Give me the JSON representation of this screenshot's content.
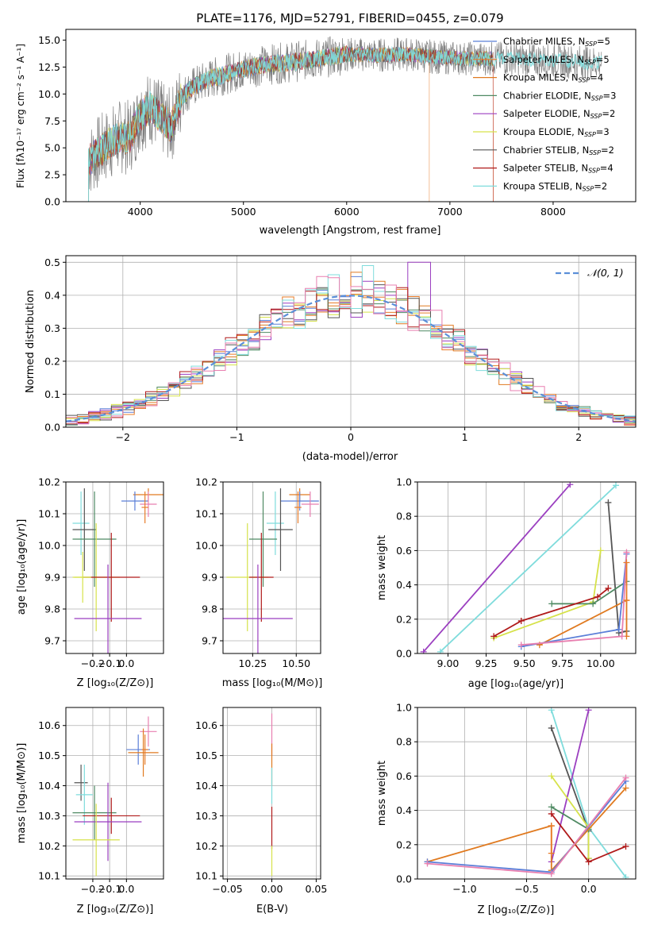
{
  "chart_data": [
    {
      "id": "spectrum",
      "type": "line",
      "title": "PLATE=1176, MJD=52791, FIBERID=0455, z=0.079",
      "xlabel": "wavelength [Angstrom, rest frame]",
      "ylabel": "Flux [fλ10⁻¹⁷ erg cm⁻² s⁻¹ A⁻¹]",
      "xlim": [
        3280,
        8800
      ],
      "ylim": [
        0,
        16
      ],
      "xticks": [
        4000,
        5000,
        6000,
        7000,
        8000
      ],
      "yticks": [
        0.0,
        2.5,
        5.0,
        7.5,
        10.0,
        12.5,
        15.0
      ],
      "grid": false,
      "legend_position": "top-right",
      "data_range": [
        3500,
        8470
      ],
      "continuum": {
        "x": [
          3500,
          3600,
          3700,
          3800,
          3900,
          4000,
          4100,
          4200,
          4300,
          4400,
          4500,
          4700,
          5000,
          5200,
          5500,
          5800,
          6000,
          6300,
          6600,
          6900,
          7200,
          7500,
          8000,
          8470
        ],
        "y": [
          3.8,
          4.6,
          5.4,
          6.0,
          6.0,
          8.0,
          8.8,
          7.8,
          7.0,
          9.7,
          10.6,
          11.5,
          12.3,
          12.7,
          13.0,
          13.4,
          13.7,
          13.6,
          13.7,
          13.4,
          13.3,
          13.3,
          13.1,
          12.9
        ]
      },
      "series": [
        {
          "name": "Chabrier MILES, N_SSP=5",
          "label_main": "Chabrier MILES, N",
          "label_sub": "SSP",
          "label_end": "=5",
          "color": "#5b7fd8"
        },
        {
          "name": "Salpeter MILES, N_SSP=5",
          "label_main": "Salpeter MILES, N",
          "label_sub": "SSP",
          "label_end": "=5",
          "color": "#e87c2a"
        },
        {
          "name": "Kroupa MILES, N_SSP=4",
          "label_main": "Kroupa MILES, N",
          "label_sub": "SSP",
          "label_end": "=4",
          "color": "#e07a20"
        },
        {
          "name": "Chabrier ELODIE, N_SSP=3",
          "label_main": "Chabrier ELODIE, N",
          "label_sub": "SSP",
          "label_end": "=3",
          "color": "#4f8a63"
        },
        {
          "name": "Salpeter ELODIE, N_SSP=2",
          "label_main": "Salpeter ELODIE, N",
          "label_sub": "SSP",
          "label_end": "=2",
          "color": "#9b3fc0"
        },
        {
          "name": "Kroupa ELODIE, N_SSP=3",
          "label_main": "Kroupa ELODIE, N",
          "label_sub": "SSP",
          "label_end": "=3",
          "color": "#d6e24a"
        },
        {
          "name": "Chabrier STELIB, N_SSP=2",
          "label_main": "Chabrier STELIB, N",
          "label_sub": "SSP",
          "label_end": "=2",
          "color": "#555555"
        },
        {
          "name": "Salpeter STELIB, N_SSP=4",
          "label_main": "Salpeter STELIB, N",
          "label_sub": "SSP",
          "label_end": "=4",
          "color": "#b01a1a"
        },
        {
          "name": "Kroupa STELIB, N_SSP=2",
          "label_main": "Kroupa STELIB, N",
          "label_sub": "SSP",
          "label_end": "=2",
          "color": "#7fdcdc"
        }
      ],
      "data_color": "#808080"
    },
    {
      "id": "residuals",
      "type": "step",
      "xlabel": "(data-model)/error",
      "ylabel": "Normed distribution",
      "xlim": [
        -2.5,
        2.5
      ],
      "ylim": [
        0,
        0.52
      ],
      "xticks": [
        -2,
        -1,
        0,
        1,
        2
      ],
      "yticks": [
        0.0,
        0.1,
        0.2,
        0.3,
        0.4,
        0.5
      ],
      "grid": true,
      "legend_position": "top-right",
      "reference_curve": {
        "name": "N(0,1)",
        "label": "𝒩(0, 1)",
        "color": "#5b8fd8",
        "style": "dashed"
      },
      "bin_width": 0.1,
      "series_colors": [
        "#5b7fd8",
        "#e87c2a",
        "#e07a20",
        "#4f8a63",
        "#9b3fc0",
        "#d6e24a",
        "#555555",
        "#b01a1a",
        "#7fdcdc",
        "#e87fb0"
      ]
    },
    {
      "id": "age-vs-Z",
      "type": "errorbar",
      "xlabel": "Z [log₁₀(Z/Z⊙)]",
      "ylabel": "age  [log₁₀(age/yr)]",
      "xlim": [
        -0.36,
        0.22
      ],
      "ylim": [
        9.66,
        10.2
      ],
      "xticks": [
        -0.2,
        -0.1,
        0.0
      ],
      "xtick_labels": [
        "−0.2",
        "−0.1",
        "0.0"
      ],
      "yticks": [
        9.7,
        9.8,
        9.9,
        10.0,
        10.1,
        10.2
      ],
      "grid": true,
      "points": [
        {
          "x": 0.13,
          "y": 10.16,
          "xerr": 0.09,
          "yerr": 0.02,
          "color": "#e07a20"
        },
        {
          "x": 0.05,
          "y": 10.14,
          "xerr": 0.08,
          "yerr": 0.03,
          "color": "#5b7fd8"
        },
        {
          "x": 0.13,
          "y": 10.13,
          "xerr": 0.05,
          "yerr": 0.04,
          "color": "#e87fb0"
        },
        {
          "x": 0.11,
          "y": 10.12,
          "xerr": 0.02,
          "yerr": 0.05,
          "color": "#e87c2a"
        },
        {
          "x": -0.27,
          "y": 10.07,
          "xerr": 0.05,
          "yerr": 0.1,
          "color": "#7fdcdc"
        },
        {
          "x": -0.25,
          "y": 10.05,
          "xerr": 0.07,
          "yerr": 0.13,
          "color": "#555555"
        },
        {
          "x": -0.19,
          "y": 10.02,
          "xerr": 0.13,
          "yerr": 0.15,
          "color": "#4f8a63"
        },
        {
          "x": -0.18,
          "y": 9.9,
          "xerr": 0.14,
          "yerr": 0.17,
          "color": "#d6e24a"
        },
        {
          "x": -0.09,
          "y": 9.9,
          "xerr": 0.17,
          "yerr": 0.14,
          "color": "#b01a1a"
        },
        {
          "x": -0.11,
          "y": 9.77,
          "xerr": 0.2,
          "yerr": 0.17,
          "color": "#9b3fc0"
        },
        {
          "x": -0.26,
          "y": 9.9,
          "xerr": 0.05,
          "yerr": 0.08,
          "color": "#d6e24a"
        }
      ]
    },
    {
      "id": "age-vs-mass",
      "type": "errorbar",
      "xlabel": "mass [log₁₀(M/M⊙)]",
      "ylabel": "",
      "xlim": [
        10.08,
        10.64
      ],
      "ylim": [
        9.66,
        10.2
      ],
      "xticks": [
        10.25,
        10.5
      ],
      "xtick_labels": [
        "10.25",
        "10.50"
      ],
      "yticks": [
        9.7,
        9.8,
        9.9,
        10.0,
        10.1,
        10.2
      ],
      "grid": true,
      "points": [
        {
          "x": 10.52,
          "y": 10.16,
          "xerr": 0.06,
          "yerr": 0.02,
          "color": "#e07a20"
        },
        {
          "x": 10.52,
          "y": 10.14,
          "xerr": 0.11,
          "yerr": 0.03,
          "color": "#5b7fd8"
        },
        {
          "x": 10.58,
          "y": 10.13,
          "xerr": 0.05,
          "yerr": 0.04,
          "color": "#e87fb0"
        },
        {
          "x": 10.51,
          "y": 10.12,
          "xerr": 0.02,
          "yerr": 0.05,
          "color": "#e87c2a"
        },
        {
          "x": 10.38,
          "y": 10.07,
          "xerr": 0.05,
          "yerr": 0.1,
          "color": "#7fdcdc"
        },
        {
          "x": 10.41,
          "y": 10.05,
          "xerr": 0.07,
          "yerr": 0.13,
          "color": "#555555"
        },
        {
          "x": 10.31,
          "y": 10.02,
          "xerr": 0.08,
          "yerr": 0.15,
          "color": "#4f8a63"
        },
        {
          "x": 10.22,
          "y": 9.9,
          "xerr": 0.12,
          "yerr": 0.17,
          "color": "#d6e24a"
        },
        {
          "x": 10.3,
          "y": 9.9,
          "xerr": 0.07,
          "yerr": 0.14,
          "color": "#b01a1a"
        },
        {
          "x": 10.28,
          "y": 9.77,
          "xerr": 0.2,
          "yerr": 0.17,
          "color": "#9b3fc0"
        }
      ]
    },
    {
      "id": "weight-vs-age",
      "type": "line",
      "xlabel": "age  [log₁₀(age/yr)]",
      "ylabel": "mass weight",
      "xlim": [
        8.8,
        10.23
      ],
      "ylim": [
        0,
        1
      ],
      "xticks": [
        9.0,
        9.25,
        9.5,
        9.75,
        10.0
      ],
      "xtick_labels": [
        "9.00",
        "9.25",
        "9.50",
        "9.75",
        "10.00"
      ],
      "yticks": [
        0.0,
        0.2,
        0.4,
        0.6,
        0.8,
        1.0
      ],
      "grid": true,
      "series": [
        {
          "color": "#9b3fc0",
          "x": [
            8.84,
            9.8
          ],
          "y": [
            0.01,
            0.985
          ]
        },
        {
          "color": "#7fdcdc",
          "x": [
            8.95,
            10.1
          ],
          "y": [
            0.01,
            0.98
          ]
        },
        {
          "color": "#555555",
          "x": [
            10.05,
            10.12,
            10.17
          ],
          "y": [
            0.88,
            0.12,
            0.13
          ]
        },
        {
          "color": "#d6e24a",
          "x": [
            9.3,
            9.95,
            10.0
          ],
          "y": [
            0.09,
            0.3,
            0.6
          ]
        },
        {
          "color": "#4f8a63",
          "x": [
            9.68,
            9.95,
            10.17
          ],
          "y": [
            0.29,
            0.29,
            0.42
          ]
        },
        {
          "color": "#b01a1a",
          "x": [
            9.3,
            9.48,
            9.98,
            10.05
          ],
          "y": [
            0.1,
            0.19,
            0.33,
            0.38
          ]
        },
        {
          "color": "#e07a20",
          "x": [
            9.6,
            10.17,
            10.17
          ],
          "y": [
            0.05,
            0.31,
            0.1
          ]
        },
        {
          "color": "#5b7fd8",
          "x": [
            9.48,
            10.12,
            10.17
          ],
          "y": [
            0.04,
            0.14,
            0.58
          ]
        },
        {
          "color": "#e87fb0",
          "x": [
            9.48,
            10.14,
            10.17
          ],
          "y": [
            0.05,
            0.1,
            0.59
          ]
        },
        {
          "color": "#e87c2a",
          "x": [
            10.17,
            10.17
          ],
          "y": [
            0.31,
            0.53
          ]
        }
      ]
    },
    {
      "id": "mass-vs-Z",
      "type": "errorbar",
      "xlabel": "Z [log₁₀(Z/Z⊙)]",
      "ylabel": "mass [log₁₀(M/M⊙)]",
      "xlim": [
        -0.36,
        0.22
      ],
      "ylim": [
        10.09,
        10.66
      ],
      "xticks": [
        -0.2,
        -0.1,
        0.0
      ],
      "xtick_labels": [
        "−0.2",
        "−0.1",
        "0.0"
      ],
      "yticks": [
        10.1,
        10.2,
        10.3,
        10.4,
        10.5,
        10.6
      ],
      "grid": true,
      "points": [
        {
          "x": 0.13,
          "y": 10.58,
          "xerr": 0.05,
          "yerr": 0.05,
          "color": "#e87fb0"
        },
        {
          "x": 0.07,
          "y": 10.52,
          "xerr": 0.07,
          "yerr": 0.05,
          "color": "#5b7fd8"
        },
        {
          "x": 0.1,
          "y": 10.51,
          "xerr": 0.09,
          "yerr": 0.08,
          "color": "#e07a20"
        },
        {
          "x": 0.11,
          "y": 10.52,
          "xerr": 0.02,
          "yerr": 0.05,
          "color": "#e87c2a"
        },
        {
          "x": -0.27,
          "y": 10.41,
          "xerr": 0.04,
          "yerr": 0.06,
          "color": "#555555"
        },
        {
          "x": -0.25,
          "y": 10.37,
          "xerr": 0.05,
          "yerr": 0.1,
          "color": "#7fdcdc"
        },
        {
          "x": -0.19,
          "y": 10.31,
          "xerr": 0.13,
          "yerr": 0.09,
          "color": "#4f8a63"
        },
        {
          "x": -0.09,
          "y": 10.3,
          "xerr": 0.17,
          "yerr": 0.06,
          "color": "#b01a1a"
        },
        {
          "x": -0.11,
          "y": 10.28,
          "xerr": 0.2,
          "yerr": 0.13,
          "color": "#9b3fc0"
        },
        {
          "x": -0.18,
          "y": 10.22,
          "xerr": 0.14,
          "yerr": 0.12,
          "color": "#d6e24a"
        }
      ]
    },
    {
      "id": "mass-vs-ebv",
      "type": "errorbar",
      "xlabel": "E(B-V)",
      "ylabel": "",
      "xlim": [
        -0.055,
        0.055
      ],
      "ylim": [
        10.09,
        10.66
      ],
      "xticks": [
        -0.05,
        0.0,
        0.05
      ],
      "xtick_labels": [
        "−0.05",
        "0.00",
        "0.05"
      ],
      "yticks": [
        10.1,
        10.2,
        10.3,
        10.4,
        10.5,
        10.6
      ],
      "grid": true,
      "points": [
        {
          "x": 0.0,
          "y": 10.57,
          "xerr": 0.0,
          "yerr": 0.07,
          "color": "#e87fb0"
        },
        {
          "x": 0.0,
          "y": 10.47,
          "xerr": 0.0,
          "yerr": 0.07,
          "color": "#e07a20"
        },
        {
          "x": 0.0,
          "y": 10.4,
          "xerr": 0.0,
          "yerr": 0.06,
          "color": "#7fdcdc"
        },
        {
          "x": 0.0,
          "y": 10.26,
          "xerr": 0.0,
          "yerr": 0.07,
          "color": "#b01a1a"
        },
        {
          "x": 0.0,
          "y": 10.15,
          "xerr": 0.0,
          "yerr": 0.05,
          "color": "#d6e24a"
        }
      ]
    },
    {
      "id": "weight-vs-Z",
      "type": "line",
      "xlabel": "Z [log₁₀(Z/Z⊙)]",
      "ylabel": "mass weight",
      "xlim": [
        -1.38,
        0.38
      ],
      "ylim": [
        0,
        1
      ],
      "xticks": [
        -1.0,
        -0.5,
        0.0
      ],
      "xtick_labels": [
        "−1.0",
        "−0.5",
        "0.0"
      ],
      "yticks": [
        0.0,
        0.2,
        0.4,
        0.6,
        0.8,
        1.0
      ],
      "grid": true,
      "series": [
        {
          "color": "#7fdcdc",
          "x": [
            -0.3,
            0.0,
            0.3
          ],
          "y": [
            0.985,
            0.3,
            0.01
          ]
        },
        {
          "color": "#9b3fc0",
          "x": [
            -0.3,
            0.0
          ],
          "y": [
            0.1,
            0.985
          ]
        },
        {
          "color": "#555555",
          "x": [
            -0.3,
            0.0,
            0.0
          ],
          "y": [
            0.88,
            0.28,
            0.12
          ]
        },
        {
          "color": "#d6e24a",
          "x": [
            -0.3,
            0.0,
            0.0
          ],
          "y": [
            0.6,
            0.3,
            0.12
          ]
        },
        {
          "color": "#4f8a63",
          "x": [
            -0.3,
            0.0
          ],
          "y": [
            0.42,
            0.29
          ]
        },
        {
          "color": "#b01a1a",
          "x": [
            -0.3,
            0.0,
            0.3
          ],
          "y": [
            0.38,
            0.1,
            0.19
          ]
        },
        {
          "color": "#e07a20",
          "x": [
            -1.3,
            -0.3,
            -0.3,
            0.3
          ],
          "y": [
            0.1,
            0.31,
            0.05,
            0.53
          ]
        },
        {
          "color": "#5b7fd8",
          "x": [
            -1.3,
            -0.3,
            0.3
          ],
          "y": [
            0.1,
            0.04,
            0.57
          ]
        },
        {
          "color": "#e87fb0",
          "x": [
            -1.3,
            -0.3,
            0.3
          ],
          "y": [
            0.09,
            0.03,
            0.59
          ]
        },
        {
          "color": "#e87c2a",
          "x": [
            -0.3,
            -0.3
          ],
          "y": [
            0.15,
            0.31
          ]
        }
      ]
    }
  ]
}
